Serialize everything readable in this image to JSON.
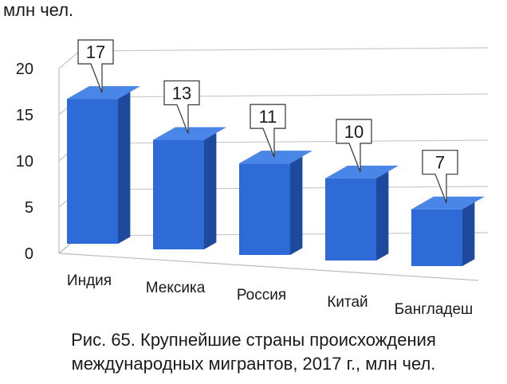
{
  "chart_data": {
    "type": "bar",
    "unit_label": "млн чел.",
    "categories": [
      "Индия",
      "Мексика",
      "Россия",
      "Китай",
      "Бангладеш"
    ],
    "values": [
      17,
      13,
      11,
      10,
      7
    ],
    "data_labels": [
      "17",
      "13",
      "11",
      "10",
      "7"
    ],
    "y_ticks": [
      0,
      5,
      10,
      15,
      20
    ],
    "ylim": [
      0,
      20
    ],
    "grid": true,
    "legend": "none",
    "bar_color": "#2e6bd6",
    "bar_side_color": "#1d4a9c",
    "bar_top_color": "#4a86e8"
  },
  "caption": {
    "line1": "Рис. 65. Крупнейшие страны происхождения",
    "line2": "международных мигрантов, 2017 г., млн чел."
  }
}
